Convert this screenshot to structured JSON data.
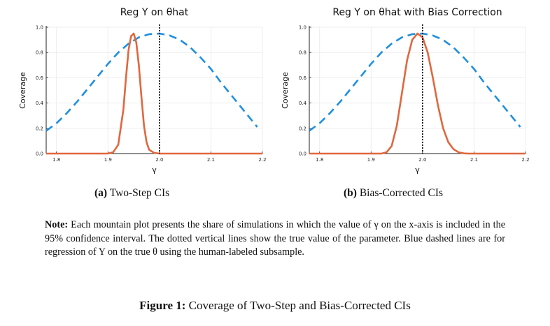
{
  "chart_data": [
    {
      "type": "line",
      "title": "Reg Y on θhat",
      "xlabel": "γ",
      "ylabel": "Coverage",
      "xlim": [
        1.78,
        2.2
      ],
      "ylim": [
        0.0,
        1.0
      ],
      "xticks": [
        "1.8",
        "1.9",
        "2.0",
        "2.1",
        "2.2"
      ],
      "yticks": [
        "0.0",
        "0.2",
        "0.4",
        "0.6",
        "0.8",
        "1.0"
      ],
      "vline": 2.0,
      "series": [
        {
          "name": "Regression of Y on true θ (human-labeled subsample)",
          "color": "#1f8fe0",
          "style": "dashed",
          "x": [
            1.78,
            1.8,
            1.82,
            1.84,
            1.86,
            1.88,
            1.9,
            1.92,
            1.94,
            1.96,
            1.98,
            2.0,
            2.02,
            2.04,
            2.06,
            2.08,
            2.1,
            2.12,
            2.14,
            2.16,
            2.18,
            2.19
          ],
          "y": [
            0.18,
            0.24,
            0.32,
            0.41,
            0.51,
            0.61,
            0.71,
            0.8,
            0.87,
            0.92,
            0.945,
            0.95,
            0.935,
            0.9,
            0.84,
            0.76,
            0.67,
            0.56,
            0.46,
            0.36,
            0.26,
            0.21
          ]
        },
        {
          "name": "Two-Step CI",
          "color": "#e0673e",
          "style": "solid",
          "x": [
            1.78,
            1.9,
            1.91,
            1.92,
            1.93,
            1.935,
            1.94,
            1.945,
            1.95,
            1.955,
            1.96,
            1.965,
            1.97,
            1.975,
            1.98,
            1.99,
            2.0,
            2.2
          ],
          "y": [
            0.0,
            0.0,
            0.01,
            0.07,
            0.35,
            0.6,
            0.82,
            0.93,
            0.95,
            0.88,
            0.7,
            0.45,
            0.22,
            0.09,
            0.03,
            0.005,
            0.0,
            0.0
          ]
        }
      ]
    },
    {
      "type": "line",
      "title": "Reg Y on θhat with Bias Correction",
      "xlabel": "γ",
      "ylabel": "Coverage",
      "xlim": [
        1.78,
        2.2
      ],
      "ylim": [
        0.0,
        1.0
      ],
      "xticks": [
        "1.8",
        "1.9",
        "2.0",
        "2.1",
        "2.2"
      ],
      "yticks": [
        "0.0",
        "0.2",
        "0.4",
        "0.6",
        "0.8",
        "1.0"
      ],
      "vline": 2.0,
      "series": [
        {
          "name": "Regression of Y on true θ (human-labeled subsample)",
          "color": "#1f8fe0",
          "style": "dashed",
          "x": [
            1.78,
            1.8,
            1.82,
            1.84,
            1.86,
            1.88,
            1.9,
            1.92,
            1.94,
            1.96,
            1.98,
            2.0,
            2.02,
            2.04,
            2.06,
            2.08,
            2.1,
            2.12,
            2.14,
            2.16,
            2.18,
            2.19
          ],
          "y": [
            0.18,
            0.24,
            0.32,
            0.41,
            0.51,
            0.61,
            0.71,
            0.8,
            0.87,
            0.92,
            0.945,
            0.95,
            0.935,
            0.9,
            0.84,
            0.76,
            0.67,
            0.56,
            0.46,
            0.36,
            0.26,
            0.21
          ]
        },
        {
          "name": "Bias-Corrected CI",
          "color": "#e0673e",
          "style": "solid",
          "x": [
            1.78,
            1.92,
            1.93,
            1.94,
            1.95,
            1.96,
            1.97,
            1.98,
            1.99,
            2.0,
            2.01,
            2.02,
            2.03,
            2.04,
            2.05,
            2.06,
            2.07,
            2.08,
            2.09,
            2.2
          ],
          "y": [
            0.0,
            0.0,
            0.01,
            0.06,
            0.22,
            0.48,
            0.74,
            0.9,
            0.95,
            0.92,
            0.8,
            0.6,
            0.38,
            0.2,
            0.09,
            0.035,
            0.01,
            0.002,
            0.0,
            0.0
          ]
        }
      ]
    }
  ],
  "subcaptions": [
    {
      "tag": "(a)",
      "text": "Two-Step CIs"
    },
    {
      "tag": "(b)",
      "text": "Bias-Corrected CIs"
    }
  ],
  "note": {
    "label": "Note:",
    "text": "Each mountain plot presents the share of simulations in which the value of γ on the x-axis is included in the 95% confidence interval. The dotted vertical lines show the true value of the parameter. Blue dashed lines are for regression of Y on the true θ using the human-labeled subsample."
  },
  "figure_caption": {
    "label": "Figure 1:",
    "text": "Coverage of Two-Step and Bias-Corrected CIs"
  },
  "colors": {
    "dashed_line": "#1f8fe0",
    "solid_line": "#e0673e",
    "vline": "#000000"
  }
}
